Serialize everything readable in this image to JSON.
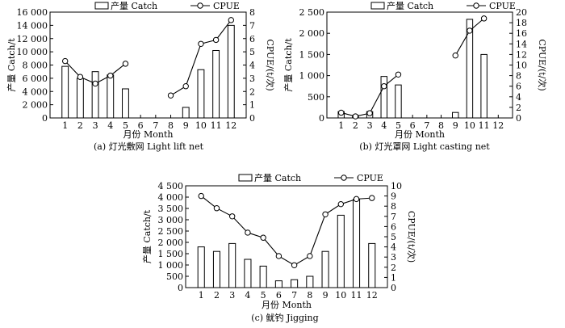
{
  "chart_data": [
    {
      "type": "bar",
      "title": "(a) 灯光敷网 Light lift net",
      "xlabel": "月份 Month",
      "ylabel": "产量 Catch/t",
      "y2label": "CPUE/(t/次)",
      "categories": [
        "1",
        "2",
        "3",
        "4",
        "5",
        "6",
        "7",
        "8",
        "9",
        "10",
        "11",
        "12"
      ],
      "ylim": [
        0,
        16000
      ],
      "yticks": [
        0,
        2000,
        4000,
        6000,
        8000,
        10000,
        12000,
        14000,
        16000
      ],
      "ytick_labels": [
        "0",
        "2 000",
        "4 000",
        "6 000",
        "8 000",
        "10 000",
        "12 000",
        "14 000",
        "16 000"
      ],
      "y2lim": [
        0,
        8
      ],
      "y2ticks": [
        0,
        1,
        2,
        3,
        4,
        5,
        6,
        7,
        8
      ],
      "y2tick_labels": [
        "0",
        "1",
        "2",
        "3",
        "4",
        "5",
        "6",
        "7",
        "8"
      ],
      "legend": [
        "产量 Catch",
        "CPUE"
      ],
      "series": [
        {
          "name": "产量 Catch",
          "kind": "bar",
          "axis": "left",
          "values": [
            7800,
            6000,
            7000,
            6500,
            4400,
            null,
            null,
            null,
            1600,
            7300,
            10200,
            14000
          ]
        },
        {
          "name": "CPUE",
          "kind": "line",
          "axis": "right",
          "values": [
            4.3,
            3.1,
            2.6,
            3.2,
            4.1,
            null,
            null,
            1.7,
            2.4,
            5.6,
            5.9,
            7.4
          ]
        }
      ]
    },
    {
      "type": "bar",
      "title": "(b) 灯光罩网 Light casting net",
      "xlabel": "月份 Month",
      "ylabel": "产量 Catch/t",
      "y2label": "CPUE/(t/次)",
      "categories": [
        "1",
        "2",
        "3",
        "4",
        "5",
        "6",
        "7",
        "8",
        "9",
        "10",
        "11",
        "12"
      ],
      "ylim": [
        0,
        2500
      ],
      "yticks": [
        0,
        500,
        1000,
        1500,
        2000,
        2500
      ],
      "ytick_labels": [
        "0",
        "500",
        "1 000",
        "1 500",
        "2 000",
        "2 500"
      ],
      "y2lim": [
        0,
        20
      ],
      "y2ticks": [
        0,
        2,
        4,
        6,
        8,
        10,
        12,
        14,
        16,
        18,
        20
      ],
      "y2tick_labels": [
        "0",
        "2",
        "4",
        "6",
        "8",
        "10",
        "12",
        "14",
        "16",
        "18",
        "20"
      ],
      "legend": [
        "产量 Catch",
        "CPUE"
      ],
      "series": [
        {
          "name": "产量 Catch",
          "kind": "bar",
          "axis": "left",
          "values": [
            150,
            60,
            150,
            980,
            780,
            null,
            null,
            null,
            130,
            2330,
            1500,
            null
          ]
        },
        {
          "name": "CPUE",
          "kind": "line",
          "axis": "right",
          "values": [
            1.0,
            0.3,
            0.9,
            6.0,
            8.2,
            null,
            null,
            null,
            11.8,
            16.5,
            18.8,
            null
          ]
        }
      ]
    },
    {
      "type": "bar",
      "title": "(c) 鱿钓 Jigging",
      "xlabel": "月份 Month",
      "ylabel": "产量 Catch/t",
      "y2label": "CPUE/(t/次)",
      "categories": [
        "1",
        "2",
        "3",
        "4",
        "5",
        "6",
        "7",
        "8",
        "9",
        "10",
        "11",
        "12"
      ],
      "ylim": [
        0,
        4500
      ],
      "yticks": [
        0,
        500,
        1000,
        1500,
        2000,
        2500,
        3000,
        3500,
        4000,
        4500
      ],
      "ytick_labels": [
        "0",
        "500",
        "1 000",
        "1 500",
        "2 000",
        "2 500",
        "3 000",
        "3 500",
        "4 000",
        "4 500"
      ],
      "y2lim": [
        0,
        10
      ],
      "y2ticks": [
        0,
        1,
        2,
        3,
        4,
        5,
        6,
        7,
        8,
        9,
        10
      ],
      "y2tick_labels": [
        "0",
        "1",
        "2",
        "3",
        "4",
        "5",
        "6",
        "7",
        "8",
        "9",
        "10"
      ],
      "legend": [
        "产量 Catch",
        "CPUE"
      ],
      "series": [
        {
          "name": "产量 Catch",
          "kind": "bar",
          "axis": "left",
          "values": [
            1800,
            1600,
            1950,
            1250,
            950,
            300,
            350,
            500,
            1600,
            3200,
            3900,
            1950
          ]
        },
        {
          "name": "CPUE",
          "kind": "line",
          "axis": "right",
          "values": [
            9.0,
            7.8,
            7.0,
            5.4,
            4.9,
            3.1,
            2.2,
            3.1,
            7.2,
            8.2,
            8.7,
            8.8
          ]
        }
      ]
    }
  ]
}
